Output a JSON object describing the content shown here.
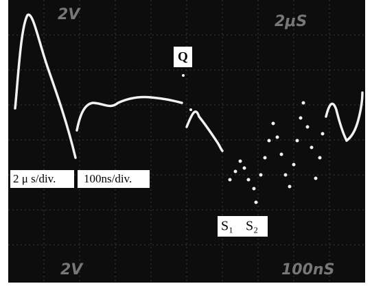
{
  "screen": {
    "top_labels": [
      "2V",
      "2μS"
    ],
    "bottom_labels": [
      "2V",
      "100nS"
    ]
  },
  "annotations": {
    "q": "Q",
    "left_scale": "2 μ s/div.",
    "right_scale": "100ns/div.",
    "s1": "S₁",
    "s2": "S₂"
  }
}
